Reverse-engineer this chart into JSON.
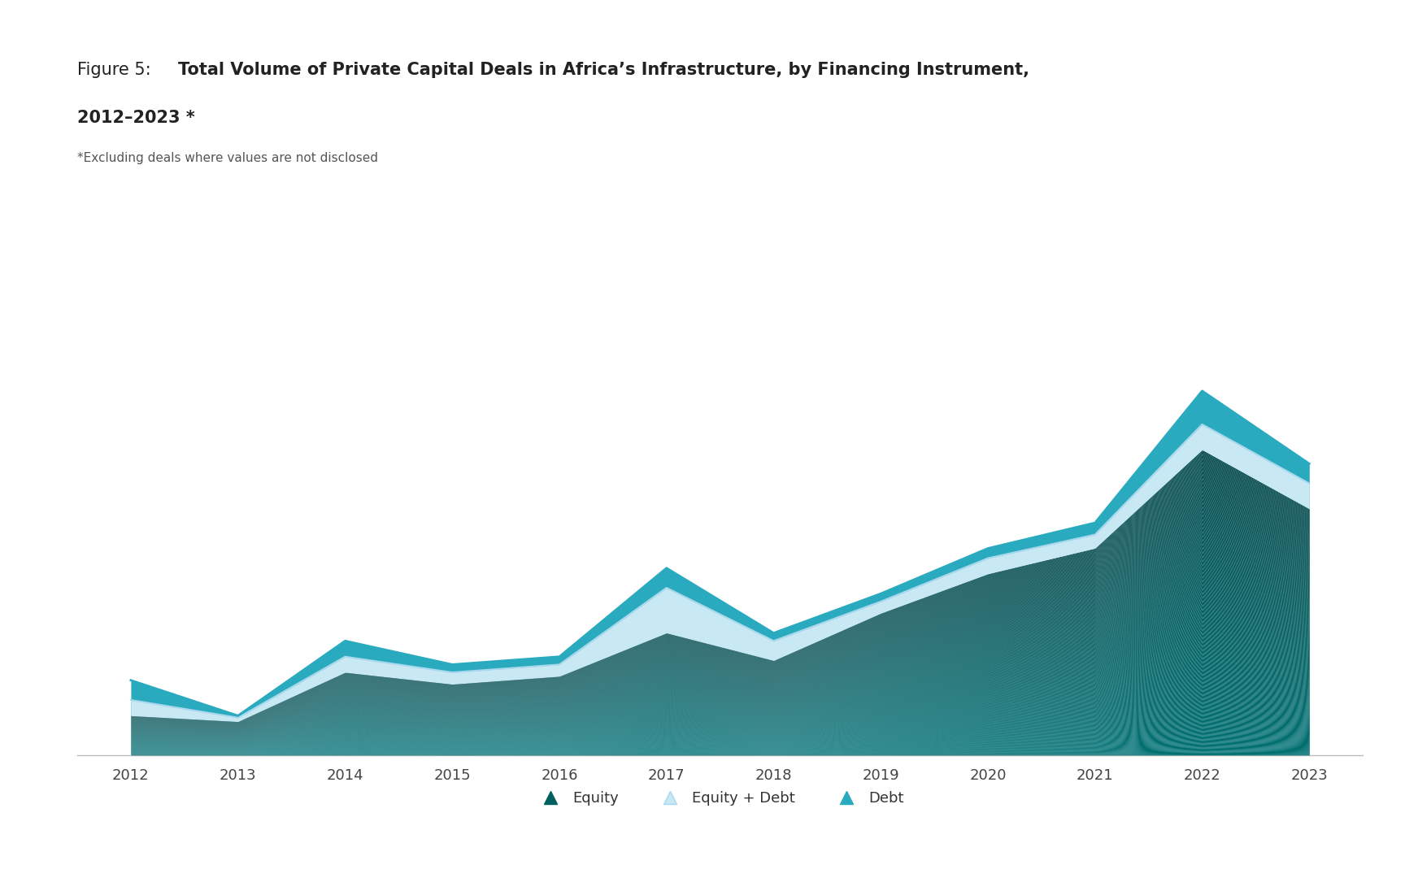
{
  "years": [
    2012,
    2013,
    2014,
    2015,
    2016,
    2017,
    2018,
    2019,
    2020,
    2021,
    2022,
    2023
  ],
  "equity": [
    2.0,
    1.7,
    4.2,
    3.6,
    4.0,
    6.2,
    4.8,
    7.2,
    9.2,
    10.5,
    15.5,
    12.5
  ],
  "equity_plus_debt": [
    2.8,
    1.9,
    5.0,
    4.2,
    4.6,
    8.5,
    5.8,
    7.8,
    10.0,
    11.2,
    16.8,
    13.8
  ],
  "debt": [
    3.8,
    2.0,
    5.8,
    4.6,
    5.0,
    9.5,
    6.2,
    8.2,
    10.5,
    11.8,
    18.5,
    14.8
  ],
  "equity_dark_color": "#006060",
  "equity_light_color": "#008080",
  "equity_plus_debt_color": "#c8e8f4",
  "equity_plus_debt_line_color": "#a8d8ec",
  "debt_color": "#2aaabf",
  "debt_line_color": "#2aaabf",
  "background_color": "#ffffff",
  "axis_color": "#bbbbbb",
  "tick_color": "#444444",
  "title_normal": "Figure 5: ",
  "title_bold_line1": "Total Volume of Private Capital Deals in Africa’s Infrastructure, by Financing Instrument,",
  "title_bold_line2": "2012–2023 *",
  "subtitle": "*Excluding deals where values are not disclosed",
  "legend_labels": [
    "Equity",
    "Equity + Debt",
    "Debt"
  ],
  "legend_marker_equity": "#006060",
  "legend_marker_epd": "#c8e8f4",
  "legend_marker_debt": "#2aaabf",
  "title_fontsize": 15,
  "subtitle_fontsize": 11,
  "tick_fontsize": 13
}
